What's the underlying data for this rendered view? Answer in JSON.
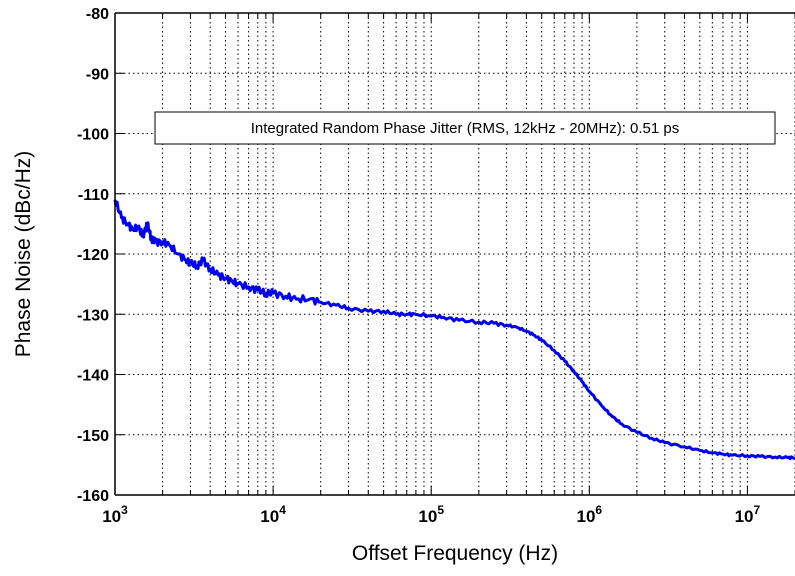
{
  "chart_data": {
    "type": "line",
    "xlabel": "Offset Frequency (Hz)",
    "ylabel": "Phase Noise (dBc/Hz)",
    "x_scale": "log",
    "xlim": [
      1000,
      20000000
    ],
    "ylim": [
      -160,
      -80
    ],
    "grid": true,
    "x_tick_labels": [
      {
        "base": "10",
        "exp": "3",
        "value": 1000
      },
      {
        "base": "10",
        "exp": "4",
        "value": 10000
      },
      {
        "base": "10",
        "exp": "5",
        "value": 100000
      },
      {
        "base": "10",
        "exp": "6",
        "value": 1000000
      },
      {
        "base": "10",
        "exp": "7",
        "value": 10000000
      }
    ],
    "y_tick_labels": [
      {
        "label": "-80",
        "value": -80
      },
      {
        "label": "-90",
        "value": -90
      },
      {
        "label": "-100",
        "value": -100
      },
      {
        "label": "-110",
        "value": -110
      },
      {
        "label": "-120",
        "value": -120
      },
      {
        "label": "-130",
        "value": -130
      },
      {
        "label": "-140",
        "value": -140
      },
      {
        "label": "-150",
        "value": -150
      },
      {
        "label": "-160",
        "value": -160
      }
    ],
    "annotation": "Integrated Random Phase Jitter (RMS, 12kHz - 20MHz): 0.51 ps",
    "series": [
      {
        "color": "#0000ee",
        "points": [
          [
            1000,
            -111
          ],
          [
            1100,
            -114
          ],
          [
            1200,
            -115
          ],
          [
            1300,
            -116
          ],
          [
            1400,
            -115.5
          ],
          [
            1500,
            -117
          ],
          [
            1600,
            -115
          ],
          [
            1700,
            -117.5
          ],
          [
            1800,
            -118
          ],
          [
            2000,
            -118
          ],
          [
            2200,
            -118.5
          ],
          [
            2500,
            -120
          ],
          [
            2800,
            -121
          ],
          [
            3000,
            -121.5
          ],
          [
            3300,
            -122
          ],
          [
            3600,
            -121
          ],
          [
            4000,
            -122.5
          ],
          [
            4500,
            -123.5
          ],
          [
            5000,
            -124
          ],
          [
            5500,
            -124.5
          ],
          [
            6000,
            -125
          ],
          [
            7000,
            -125.5
          ],
          [
            8000,
            -126
          ],
          [
            9000,
            -126.5
          ],
          [
            10000,
            -126.5
          ],
          [
            12000,
            -127
          ],
          [
            14000,
            -127.5
          ],
          [
            17000,
            -127.5
          ],
          [
            20000,
            -128
          ],
          [
            25000,
            -128.5
          ],
          [
            30000,
            -129
          ],
          [
            40000,
            -129.5
          ],
          [
            50000,
            -129.5
          ],
          [
            60000,
            -130
          ],
          [
            70000,
            -130
          ],
          [
            80000,
            -130
          ],
          [
            100000,
            -130.3
          ],
          [
            120000,
            -130.5
          ],
          [
            150000,
            -131
          ],
          [
            200000,
            -131.3
          ],
          [
            250000,
            -131.5
          ],
          [
            300000,
            -131.8
          ],
          [
            350000,
            -132.2
          ],
          [
            400000,
            -132.8
          ],
          [
            450000,
            -133.5
          ],
          [
            500000,
            -134.3
          ],
          [
            600000,
            -136
          ],
          [
            700000,
            -137.8
          ],
          [
            800000,
            -139.5
          ],
          [
            900000,
            -141.2
          ],
          [
            1000000,
            -142.8
          ],
          [
            1200000,
            -145.2
          ],
          [
            1400000,
            -147
          ],
          [
            1600000,
            -148.2
          ],
          [
            2000000,
            -149.6
          ],
          [
            2500000,
            -150.6
          ],
          [
            3000000,
            -151.3
          ],
          [
            4000000,
            -152
          ],
          [
            5000000,
            -152.6
          ],
          [
            6000000,
            -153
          ],
          [
            7000000,
            -153.2
          ],
          [
            8000000,
            -153.4
          ],
          [
            10000000,
            -153.5
          ],
          [
            12000000,
            -153.6
          ],
          [
            15000000,
            -153.7
          ],
          [
            18000000,
            -153.8
          ],
          [
            20000000,
            -153.8
          ]
        ]
      }
    ]
  }
}
